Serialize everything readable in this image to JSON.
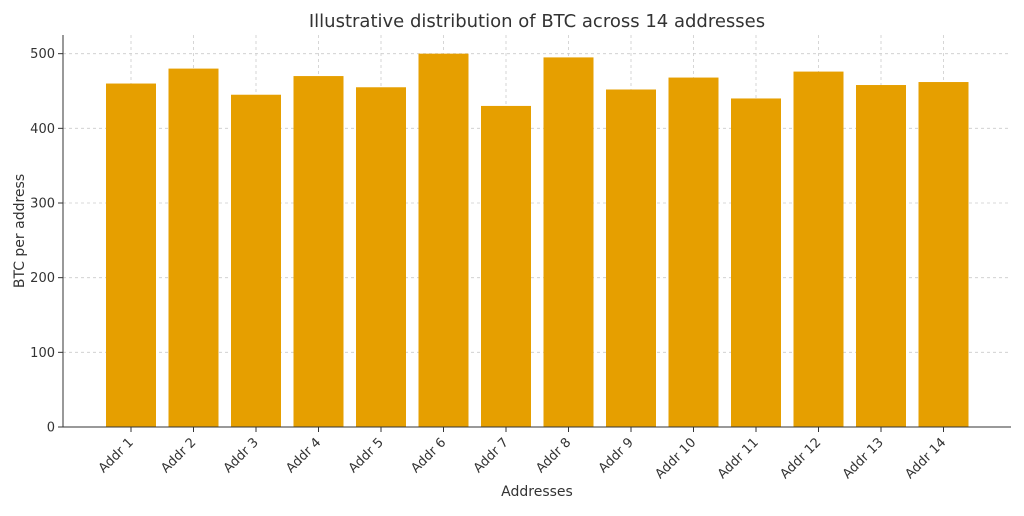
{
  "chart_data": {
    "type": "bar",
    "title": "Illustrative distribution of BTC across 14 addresses",
    "xlabel": "Addresses",
    "ylabel": "BTC per address",
    "categories": [
      "Addr 1",
      "Addr 2",
      "Addr 3",
      "Addr 4",
      "Addr 5",
      "Addr 6",
      "Addr 7",
      "Addr 8",
      "Addr 9",
      "Addr 10",
      "Addr 11",
      "Addr 12",
      "Addr 13",
      "Addr 14"
    ],
    "values": [
      460,
      480,
      445,
      470,
      455,
      500,
      430,
      495,
      452,
      468,
      440,
      476,
      458,
      462
    ],
    "ylim": [
      0,
      525
    ],
    "yticks": [
      0,
      100,
      200,
      300,
      400,
      500
    ],
    "grid": true,
    "bar_color": "#E69F00"
  }
}
